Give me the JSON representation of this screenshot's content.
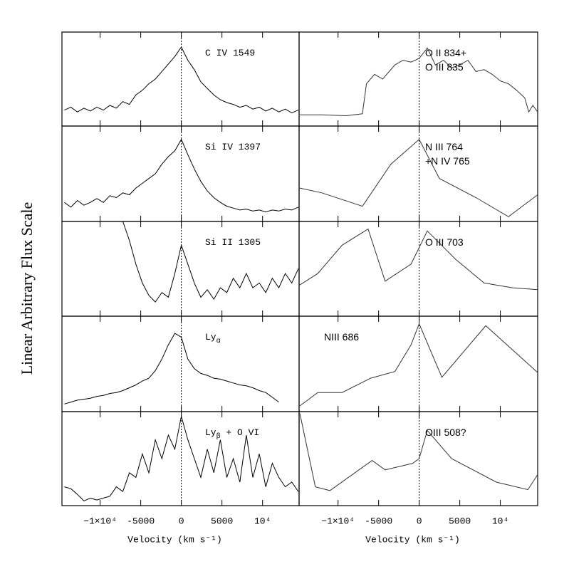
{
  "ylabel": "Linear Arbitrary Flux Scale",
  "chart_data": [
    {
      "type": "line",
      "label": [
        "C IV 1549"
      ],
      "color": "#000000",
      "xlim": [
        -14700,
        14500
      ],
      "ylim": [
        0,
        1
      ],
      "xticks": [
        -10000,
        -5000,
        0,
        5000,
        10000
      ],
      "x": [
        -14400,
        -13600,
        -12800,
        -12000,
        -11200,
        -10400,
        -9600,
        -8800,
        -8000,
        -7200,
        -6400,
        -5600,
        -4800,
        -4000,
        -3200,
        -2400,
        -1600,
        -800,
        0,
        800,
        1600,
        2400,
        3200,
        4000,
        4800,
        5600,
        6400,
        7200,
        8000,
        8800,
        9600,
        10400,
        11200,
        12000,
        12800,
        13600,
        14400
      ],
      "values": [
        0.17,
        0.2,
        0.15,
        0.19,
        0.16,
        0.2,
        0.17,
        0.22,
        0.19,
        0.26,
        0.23,
        0.33,
        0.38,
        0.45,
        0.5,
        0.58,
        0.66,
        0.74,
        0.84,
        0.7,
        0.6,
        0.47,
        0.4,
        0.33,
        0.28,
        0.25,
        0.23,
        0.2,
        0.22,
        0.18,
        0.2,
        0.16,
        0.19,
        0.15,
        0.18,
        0.14,
        0.17
      ]
    },
    {
      "type": "line",
      "label": [
        "Si IV 1397"
      ],
      "color": "#000000",
      "xlim": [
        -14700,
        14500
      ],
      "ylim": [
        0,
        1
      ],
      "xticks": [
        -10000,
        -5000,
        0,
        5000,
        10000
      ],
      "x": [
        -14400,
        -13600,
        -12800,
        -12000,
        -11200,
        -10400,
        -9600,
        -8800,
        -8000,
        -7200,
        -6400,
        -5600,
        -4800,
        -4000,
        -3200,
        -2400,
        -1600,
        -800,
        0,
        800,
        1600,
        2400,
        3200,
        4000,
        4800,
        5600,
        6400,
        7200,
        8000,
        8800,
        9600,
        10400,
        11200,
        12000,
        12800,
        13600,
        14400
      ],
      "values": [
        0.2,
        0.15,
        0.22,
        0.17,
        0.2,
        0.24,
        0.2,
        0.27,
        0.25,
        0.3,
        0.28,
        0.35,
        0.4,
        0.45,
        0.5,
        0.6,
        0.68,
        0.74,
        0.86,
        0.7,
        0.55,
        0.42,
        0.32,
        0.25,
        0.2,
        0.16,
        0.14,
        0.12,
        0.13,
        0.11,
        0.12,
        0.1,
        0.12,
        0.11,
        0.13,
        0.12,
        0.15
      ]
    },
    {
      "type": "line",
      "label": [
        "Si II 1305"
      ],
      "color": "#000000",
      "xlim": [
        -14700,
        14500
      ],
      "ylim": [
        0,
        1
      ],
      "xticks": [
        -10000,
        -5000,
        0,
        5000,
        10000
      ],
      "x": [
        -14400,
        -13600,
        -12800,
        -12000,
        -11200,
        -10400,
        -9600,
        -8800,
        -8000,
        -7200,
        -6400,
        -5600,
        -4800,
        -4000,
        -3200,
        -2400,
        -1600,
        -800,
        0,
        800,
        1600,
        2400,
        3200,
        4000,
        4800,
        5600,
        6400,
        7200,
        8000,
        8800,
        9600,
        10400,
        11200,
        12000,
        12800,
        13600,
        14400
      ],
      "values": [
        null,
        null,
        null,
        null,
        null,
        null,
        null,
        null,
        null,
        1.0,
        0.8,
        0.55,
        0.35,
        0.22,
        0.15,
        0.25,
        0.2,
        0.45,
        0.75,
        0.55,
        0.35,
        0.2,
        0.28,
        0.18,
        0.3,
        0.25,
        0.4,
        0.3,
        0.45,
        0.3,
        0.35,
        0.25,
        0.4,
        0.3,
        0.45,
        0.35,
        0.5
      ]
    },
    {
      "type": "line",
      "label": [
        "Ly"
      ],
      "label_sub": "α",
      "color": "#000000",
      "xlim": [
        -14700,
        14500
      ],
      "ylim": [
        0,
        1
      ],
      "xticks": [
        -10000,
        -5000,
        0,
        5000,
        10000
      ],
      "x": [
        -14400,
        -13600,
        -12800,
        -12000,
        -11200,
        -10400,
        -9600,
        -8800,
        -8000,
        -7200,
        -6400,
        -5600,
        -4800,
        -4000,
        -3200,
        -2400,
        -1600,
        -800,
        0,
        800,
        1600,
        2400,
        3200,
        4000,
        4800,
        5600,
        6400,
        7200,
        8000,
        8800,
        9600,
        10400,
        11200,
        12000,
        12800,
        13600,
        14400
      ],
      "values": [
        0.08,
        0.1,
        0.12,
        0.13,
        0.14,
        0.16,
        0.17,
        0.19,
        0.2,
        0.22,
        0.25,
        0.28,
        0.32,
        0.35,
        0.43,
        0.55,
        0.7,
        0.82,
        0.78,
        0.55,
        0.45,
        0.4,
        0.38,
        0.35,
        0.34,
        0.32,
        0.3,
        0.28,
        0.27,
        0.25,
        0.22,
        0.2,
        0.15,
        0.1,
        null,
        null,
        null
      ]
    },
    {
      "type": "line",
      "label": [
        "Ly"
      ],
      "label_sub": "β",
      "label_tail": " + O VI",
      "color": "#000000",
      "xlim": [
        -14700,
        14500
      ],
      "ylim": [
        0,
        1
      ],
      "xticks": [
        {
          "value": -10000,
          "label": "−1×10⁴"
        },
        -5000,
        0,
        5000,
        {
          "value": 10000,
          "label": "10⁴"
        }
      ],
      "xlabel": "Velocity (km s⁻¹)",
      "x": [
        -14400,
        -13600,
        -12800,
        -12000,
        -11200,
        -10400,
        -9600,
        -8800,
        -8000,
        -7200,
        -6400,
        -5600,
        -4800,
        -4000,
        -3200,
        -2400,
        -1600,
        -800,
        0,
        800,
        1600,
        2400,
        3200,
        4000,
        4800,
        5600,
        6400,
        7200,
        8000,
        8800,
        9600,
        10400,
        11200,
        12000,
        12800,
        13600,
        14400
      ],
      "values": [
        0.2,
        0.18,
        0.12,
        0.05,
        0.08,
        0.06,
        0.08,
        0.1,
        0.2,
        0.15,
        0.35,
        0.3,
        0.55,
        0.35,
        0.7,
        0.5,
        0.75,
        0.6,
        0.95,
        0.7,
        0.5,
        0.3,
        0.6,
        0.35,
        0.7,
        0.3,
        0.5,
        0.25,
        0.75,
        0.3,
        0.55,
        0.2,
        0.45,
        0.3,
        0.2,
        0.25,
        0.15
      ]
    },
    {
      "type": "line",
      "label": [
        "O II 834+",
        "O III 835"
      ],
      "color": "#333333",
      "xlim": [
        -14800,
        14600
      ],
      "ylim": [
        0,
        1
      ],
      "xticks": [
        -10000,
        -5000,
        0,
        5000,
        10000
      ],
      "x": [
        -14700,
        -12000,
        -9000,
        -7000,
        -6500,
        -5500,
        -4500,
        -3000,
        -2000,
        -1000,
        0,
        1000,
        2000,
        3000,
        4000,
        5000,
        6000,
        7000,
        8000,
        9000,
        10000,
        11000,
        12000,
        13000,
        13500,
        14000,
        14600
      ],
      "values": [
        0.12,
        0.12,
        0.11,
        0.13,
        0.45,
        0.55,
        0.5,
        0.65,
        0.7,
        0.68,
        0.72,
        0.83,
        0.65,
        0.7,
        0.62,
        0.65,
        0.7,
        0.58,
        0.6,
        0.55,
        0.48,
        0.45,
        0.38,
        0.3,
        0.15,
        0.22,
        0.15
      ]
    },
    {
      "type": "line",
      "label": [
        "N III 764",
        "+N IV 765"
      ],
      "color": "#333333",
      "xlim": [
        -14800,
        14600
      ],
      "ylim": [
        0,
        1
      ],
      "xticks": [
        -10000,
        -5000,
        0,
        5000,
        10000
      ],
      "x": [
        -14700,
        -12000,
        -7000,
        -3500,
        0,
        2500,
        7000,
        11000,
        14600
      ],
      "values": [
        0.35,
        0.3,
        0.16,
        0.6,
        0.86,
        0.45,
        0.25,
        0.05,
        0.28
      ]
    },
    {
      "type": "line",
      "label": [
        "O III 703"
      ],
      "color": "#333333",
      "xlim": [
        -14800,
        14600
      ],
      "ylim": [
        0,
        1
      ],
      "xticks": [
        -10000,
        -5000,
        0,
        5000,
        10000
      ],
      "x": [
        -14700,
        -12500,
        -9500,
        -6300,
        -4200,
        -1000,
        1000,
        4500,
        8000,
        11500,
        14600
      ],
      "values": [
        0.33,
        0.45,
        0.75,
        0.92,
        0.37,
        0.55,
        0.9,
        0.6,
        0.35,
        0.3,
        0.28
      ]
    },
    {
      "type": "line",
      "label": [
        "NIII 686"
      ],
      "color": "#333333",
      "xlim": [
        -14800,
        14600
      ],
      "ylim": [
        0,
        1
      ],
      "xticks": [
        -10000,
        -5000,
        0,
        5000,
        10000
      ],
      "x": [
        -14700,
        -12500,
        -9500,
        -6000,
        -3000,
        -1000,
        0,
        2800,
        8200,
        14600
      ],
      "values": [
        0.06,
        0.2,
        0.2,
        0.35,
        0.42,
        0.7,
        0.92,
        0.36,
        0.9,
        0.41
      ]
    },
    {
      "type": "line",
      "label": [
        "OIII 508?"
      ],
      "color": "#333333",
      "xlim": [
        -14800,
        14600
      ],
      "ylim": [
        0,
        1
      ],
      "xticks": [
        {
          "value": -10000,
          "label": "−1×10⁴"
        },
        -5000,
        0,
        5000,
        {
          "value": 10000,
          "label": "10⁴"
        }
      ],
      "xlabel": "Velocity (km s⁻¹)",
      "x": [
        -14700,
        -12800,
        -11000,
        -5800,
        -4200,
        -800,
        0,
        1000,
        4000,
        9500,
        13400,
        14600
      ],
      "values": [
        0.98,
        0.2,
        0.16,
        0.48,
        0.38,
        0.45,
        0.5,
        0.8,
        0.5,
        0.25,
        0.17,
        0.33
      ]
    }
  ]
}
